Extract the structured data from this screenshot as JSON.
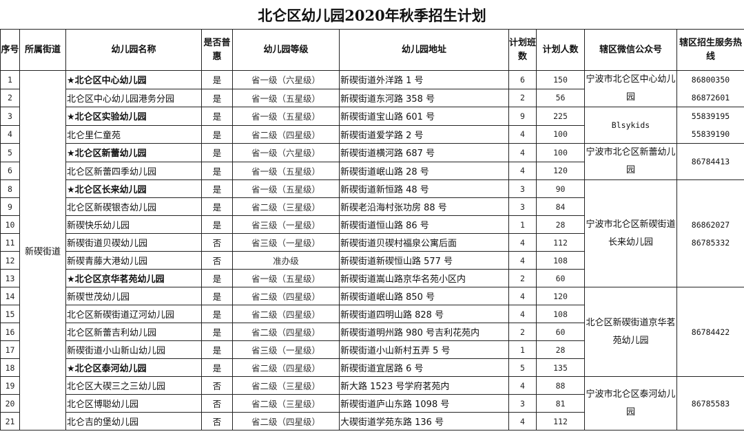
{
  "title": "北仑区幼儿园2020年秋季招生计划",
  "headers": [
    "序号",
    "所属街道",
    "幼儿园名称",
    "是否普惠",
    "幼儿园等级",
    "幼儿园地址",
    "计划班数",
    "计划人数",
    "辖区微信公众号",
    "辖区招生服务热线"
  ],
  "street": "新碶街道",
  "rows": [
    {
      "no": "1",
      "name": "★北仑区中心幼儿园",
      "key": true,
      "puhui": "是",
      "grade": "省一级（六星级）",
      "addr": "新碶街道外洋路 1 号",
      "classes": "6",
      "people": "150"
    },
    {
      "no": "2",
      "name": "北仑区中心幼儿园港务分园",
      "key": false,
      "puhui": "是",
      "grade": "省一级（五星级）",
      "addr": "新碶街道东河路 358 号",
      "classes": "2",
      "people": "56"
    },
    {
      "no": "3",
      "name": "★北仑区实验幼儿园",
      "key": true,
      "puhui": "是",
      "grade": "省一级（五星级）",
      "addr": "新碶街道宝山路 601 号",
      "classes": "9",
      "people": "225"
    },
    {
      "no": "4",
      "name": "北仑里仁童苑",
      "key": false,
      "puhui": "是",
      "grade": "省二级（四星级）",
      "addr": "新碶街道爱学路 2 号",
      "classes": "4",
      "people": "100"
    },
    {
      "no": "5",
      "name": "★北仑区新蕾幼儿园",
      "key": true,
      "puhui": "是",
      "grade": "省一级（六星级）",
      "addr": "新碶街道横河路 687 号",
      "classes": "4",
      "people": "100"
    },
    {
      "no": "6",
      "name": "北仑区新蕾四季幼儿园",
      "key": false,
      "puhui": "是",
      "grade": "省一级（五星级）",
      "addr": "新碶街道岷山路 28 号",
      "classes": "4",
      "people": "120"
    },
    {
      "no": "8",
      "name": "★北仑区长来幼儿园",
      "key": true,
      "puhui": "是",
      "grade": "省一级（五星级）",
      "addr": "新碶街道新恒路 48 号",
      "classes": "3",
      "people": "90"
    },
    {
      "no": "9",
      "name": "北仑区新碶银杏幼儿园",
      "key": false,
      "puhui": "是",
      "grade": "省二级（三星级）",
      "addr": "新碶老沿海村张功房 88 号",
      "classes": "3",
      "people": "84"
    },
    {
      "no": "10",
      "name": "新碶快乐幼儿园",
      "key": false,
      "puhui": "是",
      "grade": "省三级（一星级）",
      "addr": "新碶街道恒山路 86 号",
      "classes": "1",
      "people": "28"
    },
    {
      "no": "11",
      "name": "新碶街道贝碶幼儿园",
      "key": false,
      "puhui": "否",
      "grade": "省三级（一星级）",
      "addr": "新碶街道贝碶村福泉公寓后面",
      "classes": "4",
      "people": "112"
    },
    {
      "no": "12",
      "name": "新碶青藤大港幼儿园",
      "key": false,
      "puhui": "否",
      "grade": "准办级",
      "addr": "新碶街道新碶恒山路 577 号",
      "classes": "4",
      "people": "108"
    },
    {
      "no": "13",
      "name": "★北仑区京华茗苑幼儿园",
      "key": true,
      "puhui": "是",
      "grade": "省一级（五星级）",
      "addr": "新碶街道嵩山路京华名苑小区内",
      "classes": "2",
      "people": "60"
    },
    {
      "no": "14",
      "name": "新碶世茂幼儿园",
      "key": false,
      "puhui": "是",
      "grade": "省二级（四星级）",
      "addr": "新碶街道岷山路 850 号",
      "classes": "4",
      "people": "120"
    },
    {
      "no": "15",
      "name": "北仑区新碶街道辽河幼儿园",
      "key": false,
      "puhui": "是",
      "grade": "省二级（四星级）",
      "addr": "新碶街道四明山路 828 号",
      "classes": "4",
      "people": "108"
    },
    {
      "no": "16",
      "name": "北仑区新蕾吉利幼儿园",
      "key": false,
      "puhui": "是",
      "grade": "省二级（四星级）",
      "addr": "新碶街道明州路 980 号吉利花苑内",
      "classes": "2",
      "people": "60"
    },
    {
      "no": "17",
      "name": "新碶街道小山新山幼儿园",
      "key": false,
      "puhui": "是",
      "grade": "省三级（一星级）",
      "addr": "新碶街道小山新村五弄 5 号",
      "classes": "1",
      "people": "28"
    },
    {
      "no": "18",
      "name": "★北仑区泰河幼儿园",
      "key": true,
      "puhui": "是",
      "grade": "省二级（四星级）",
      "addr": "新碶街道宜居路 6 号",
      "classes": "5",
      "people": "135"
    },
    {
      "no": "19",
      "name": "北仑区大碶三之三幼儿园",
      "key": false,
      "puhui": "否",
      "grade": "省二级（三星级）",
      "addr": "新大路 1523 号学府茗苑内",
      "classes": "4",
      "people": "88"
    },
    {
      "no": "20",
      "name": "北仑区博聪幼儿园",
      "key": false,
      "puhui": "否",
      "grade": "省二级（三星级）",
      "addr": "新碶街道庐山东路 1098 号",
      "classes": "3",
      "people": "81"
    },
    {
      "no": "21",
      "name": "北仑吉的堡幼儿园",
      "key": false,
      "puhui": "否",
      "grade": "省二级（四星级）",
      "addr": "大碶街道学苑东路 136 号",
      "classes": "4",
      "people": "112"
    }
  ],
  "groups": [
    {
      "rows": 2,
      "wechat": "宁波市北仑区中心幼儿园",
      "hotline": [
        "86800350",
        "86872601"
      ]
    },
    {
      "rows": 2,
      "wechat": "Blsykids",
      "hotline": [
        "55839195",
        "55839190"
      ]
    },
    {
      "rows": 2,
      "wechat": "宁波市北仑区新蕾幼儿园",
      "hotline": [
        "86784413"
      ]
    },
    {
      "rows": 6,
      "wechat": "宁波市北仑区新碶街道长来幼儿园",
      "hotline": [
        "86862027",
        "86785332"
      ]
    },
    {
      "rows": 5,
      "wechat": "北仑区新碶街道京华茗苑幼儿园",
      "hotline": [
        "86784422"
      ]
    },
    {
      "rows": 4,
      "wechat": "宁波市北仑区泰河幼儿园",
      "hotline": [
        "86785583"
      ]
    }
  ]
}
